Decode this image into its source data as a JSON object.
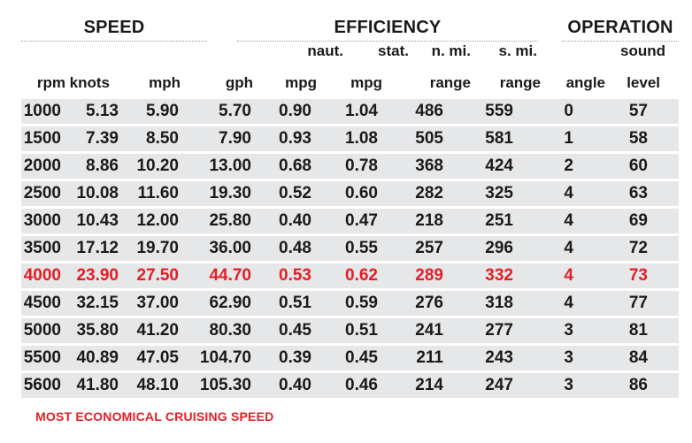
{
  "sections": {
    "speed": "SPEED",
    "efficiency": "EFFICIENCY",
    "operation": "OPERATION"
  },
  "header_top": {
    "naut": "naut.",
    "stat": "stat.",
    "nmi": "n. mi.",
    "smi": "s. mi.",
    "sound": "sound"
  },
  "header_bottom": {
    "rpm": "rpm",
    "knots": "knots",
    "mph": "mph",
    "gph": "gph",
    "mpg1": "mpg",
    "mpg2": "mpg",
    "range1": "range",
    "range2": "range",
    "angle": "angle",
    "level": "level"
  },
  "highlight_color": "#e31e26",
  "row_background": "#e6e7e8",
  "rows": [
    {
      "rpm": "1000",
      "knots": "5.13",
      "mph": "5.90",
      "gph": "5.70",
      "naut_mpg": "0.90",
      "stat_mpg": "1.04",
      "nmi_range": "486",
      "smi_range": "559",
      "angle": "0",
      "sound": "57",
      "highlight": false
    },
    {
      "rpm": "1500",
      "knots": "7.39",
      "mph": "8.50",
      "gph": "7.90",
      "naut_mpg": "0.93",
      "stat_mpg": "1.08",
      "nmi_range": "505",
      "smi_range": "581",
      "angle": "1",
      "sound": "58",
      "highlight": false
    },
    {
      "rpm": "2000",
      "knots": "8.86",
      "mph": "10.20",
      "gph": "13.00",
      "naut_mpg": "0.68",
      "stat_mpg": "0.78",
      "nmi_range": "368",
      "smi_range": "424",
      "angle": "2",
      "sound": "60",
      "highlight": false
    },
    {
      "rpm": "2500",
      "knots": "10.08",
      "mph": "11.60",
      "gph": "19.30",
      "naut_mpg": "0.52",
      "stat_mpg": "0.60",
      "nmi_range": "282",
      "smi_range": "325",
      "angle": "4",
      "sound": "63",
      "highlight": false
    },
    {
      "rpm": "3000",
      "knots": "10.43",
      "mph": "12.00",
      "gph": "25.80",
      "naut_mpg": "0.40",
      "stat_mpg": "0.47",
      "nmi_range": "218",
      "smi_range": "251",
      "angle": "4",
      "sound": "69",
      "highlight": false
    },
    {
      "rpm": "3500",
      "knots": "17.12",
      "mph": "19.70",
      "gph": "36.00",
      "naut_mpg": "0.48",
      "stat_mpg": "0.55",
      "nmi_range": "257",
      "smi_range": "296",
      "angle": "4",
      "sound": "72",
      "highlight": false
    },
    {
      "rpm": "4000",
      "knots": "23.90",
      "mph": "27.50",
      "gph": "44.70",
      "naut_mpg": "0.53",
      "stat_mpg": "0.62",
      "nmi_range": "289",
      "smi_range": "332",
      "angle": "4",
      "sound": "73",
      "highlight": true
    },
    {
      "rpm": "4500",
      "knots": "32.15",
      "mph": "37.00",
      "gph": "62.90",
      "naut_mpg": "0.51",
      "stat_mpg": "0.59",
      "nmi_range": "276",
      "smi_range": "318",
      "angle": "4",
      "sound": "77",
      "highlight": false
    },
    {
      "rpm": "5000",
      "knots": "35.80",
      "mph": "41.20",
      "gph": "80.30",
      "naut_mpg": "0.45",
      "stat_mpg": "0.51",
      "nmi_range": "241",
      "smi_range": "277",
      "angle": "3",
      "sound": "81",
      "highlight": false
    },
    {
      "rpm": "5500",
      "knots": "40.89",
      "mph": "47.05",
      "gph": "104.70",
      "naut_mpg": "0.39",
      "stat_mpg": "0.45",
      "nmi_range": "211",
      "smi_range": "243",
      "angle": "3",
      "sound": "84",
      "highlight": false
    },
    {
      "rpm": "5600",
      "knots": "41.80",
      "mph": "48.10",
      "gph": "105.30",
      "naut_mpg": "0.40",
      "stat_mpg": "0.46",
      "nmi_range": "214",
      "smi_range": "247",
      "angle": "3",
      "sound": "86",
      "highlight": false
    }
  ],
  "footnote": "MOST ECONOMICAL CRUISING SPEED"
}
